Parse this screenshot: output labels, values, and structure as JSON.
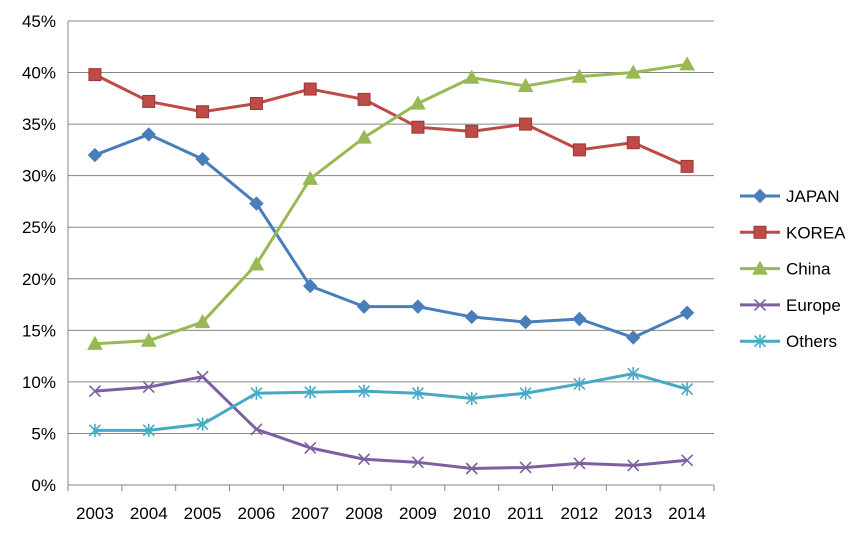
{
  "chart_data": {
    "type": "line",
    "title": "",
    "xlabel": "",
    "ylabel": "",
    "categories": [
      "2003",
      "2004",
      "2005",
      "2006",
      "2007",
      "2008",
      "2009",
      "2010",
      "2011",
      "2012",
      "2013",
      "2014"
    ],
    "ylim": [
      0,
      45
    ],
    "yticks": [
      0,
      5,
      10,
      15,
      20,
      25,
      30,
      35,
      40,
      45
    ],
    "ytick_labels": [
      "0%",
      "5%",
      "10%",
      "15%",
      "20%",
      "25%",
      "30%",
      "35%",
      "40%",
      "45%"
    ],
    "grid": "horizontal",
    "legend_position": "right",
    "series": [
      {
        "name": "JAPAN",
        "color": "#4a7ebb",
        "marker": "diamond",
        "values": [
          32.0,
          34.0,
          31.6,
          27.3,
          19.3,
          17.3,
          17.3,
          16.3,
          15.8,
          16.1,
          14.3,
          16.7
        ]
      },
      {
        "name": "KOREA",
        "color": "#be4b48",
        "marker": "square",
        "values": [
          39.8,
          37.2,
          36.2,
          37.0,
          38.4,
          37.4,
          34.7,
          34.3,
          35.0,
          32.5,
          33.2,
          30.9
        ]
      },
      {
        "name": "China",
        "color": "#98b954",
        "marker": "triangle",
        "values": [
          13.7,
          14.0,
          15.8,
          21.4,
          29.7,
          33.7,
          37.0,
          39.5,
          38.7,
          39.6,
          40.0,
          40.8
        ]
      },
      {
        "name": "Europe",
        "color": "#7d60a0",
        "marker": "x",
        "values": [
          9.1,
          9.5,
          10.5,
          5.4,
          3.6,
          2.5,
          2.2,
          1.6,
          1.7,
          2.1,
          1.9,
          2.4
        ]
      },
      {
        "name": "Others",
        "color": "#46aac5",
        "marker": "star",
        "values": [
          5.3,
          5.3,
          5.9,
          8.9,
          9.0,
          9.1,
          8.9,
          8.4,
          8.9,
          9.8,
          10.8,
          9.3
        ]
      }
    ]
  }
}
